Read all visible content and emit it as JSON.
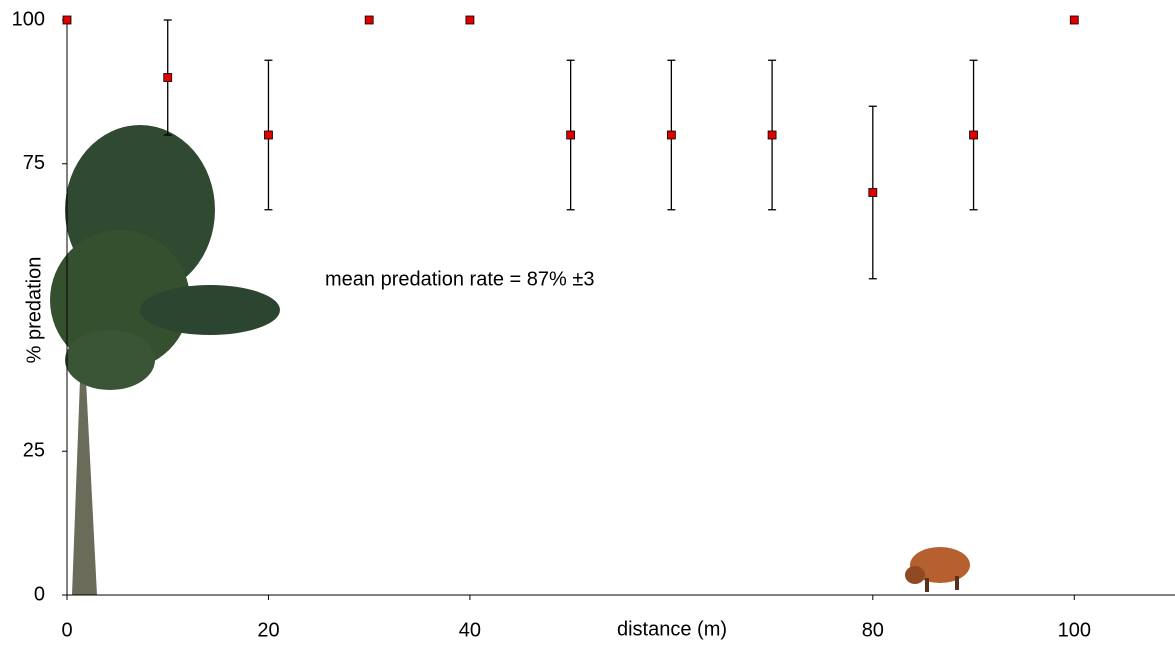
{
  "chart_data": {
    "type": "scatter",
    "x": [
      0,
      10,
      20,
      30,
      40,
      50,
      60,
      70,
      80,
      90,
      100
    ],
    "values": [
      100,
      90,
      80,
      100,
      100,
      80,
      80,
      80,
      70,
      80,
      100
    ],
    "errors": [
      0,
      10,
      13,
      0,
      0,
      13,
      13,
      13,
      15,
      13,
      0
    ],
    "color": "#e00000",
    "xlim": [
      0,
      110
    ],
    "xticks": [
      0,
      20,
      40,
      80,
      100
    ],
    "ylim": [
      0,
      100
    ],
    "yticks": [
      0,
      25,
      75,
      100
    ],
    "xlabel": "distance (m)",
    "ylabel": "% predation",
    "annotation": "mean predation rate = 87% ±3"
  }
}
